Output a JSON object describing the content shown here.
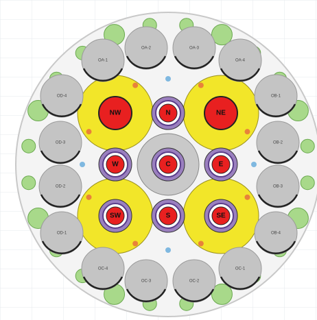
{
  "core_positions": [
    {
      "label": "NW"
    },
    {
      "label": "N"
    },
    {
      "label": "NE"
    },
    {
      "label": "W"
    },
    {
      "label": "C"
    },
    {
      "label": "E"
    },
    {
      "label": "SW"
    },
    {
      "label": "S"
    },
    {
      "label": "SE"
    }
  ],
  "outer_positions": [
    {
      "label": "OA-1"
    },
    {
      "label": "OA-2"
    },
    {
      "label": "OA-3"
    },
    {
      "label": "OA-4"
    },
    {
      "label": "OB-1"
    },
    {
      "label": "OB-2"
    },
    {
      "label": "OB-3"
    },
    {
      "label": "OB-4"
    },
    {
      "label": "OC-1"
    },
    {
      "label": "OC-2"
    },
    {
      "label": "OC-3"
    },
    {
      "label": "OC-4"
    },
    {
      "label": "OD-1"
    },
    {
      "label": "OD-2"
    },
    {
      "label": "OD-3"
    },
    {
      "label": "OD-4"
    }
  ]
}
